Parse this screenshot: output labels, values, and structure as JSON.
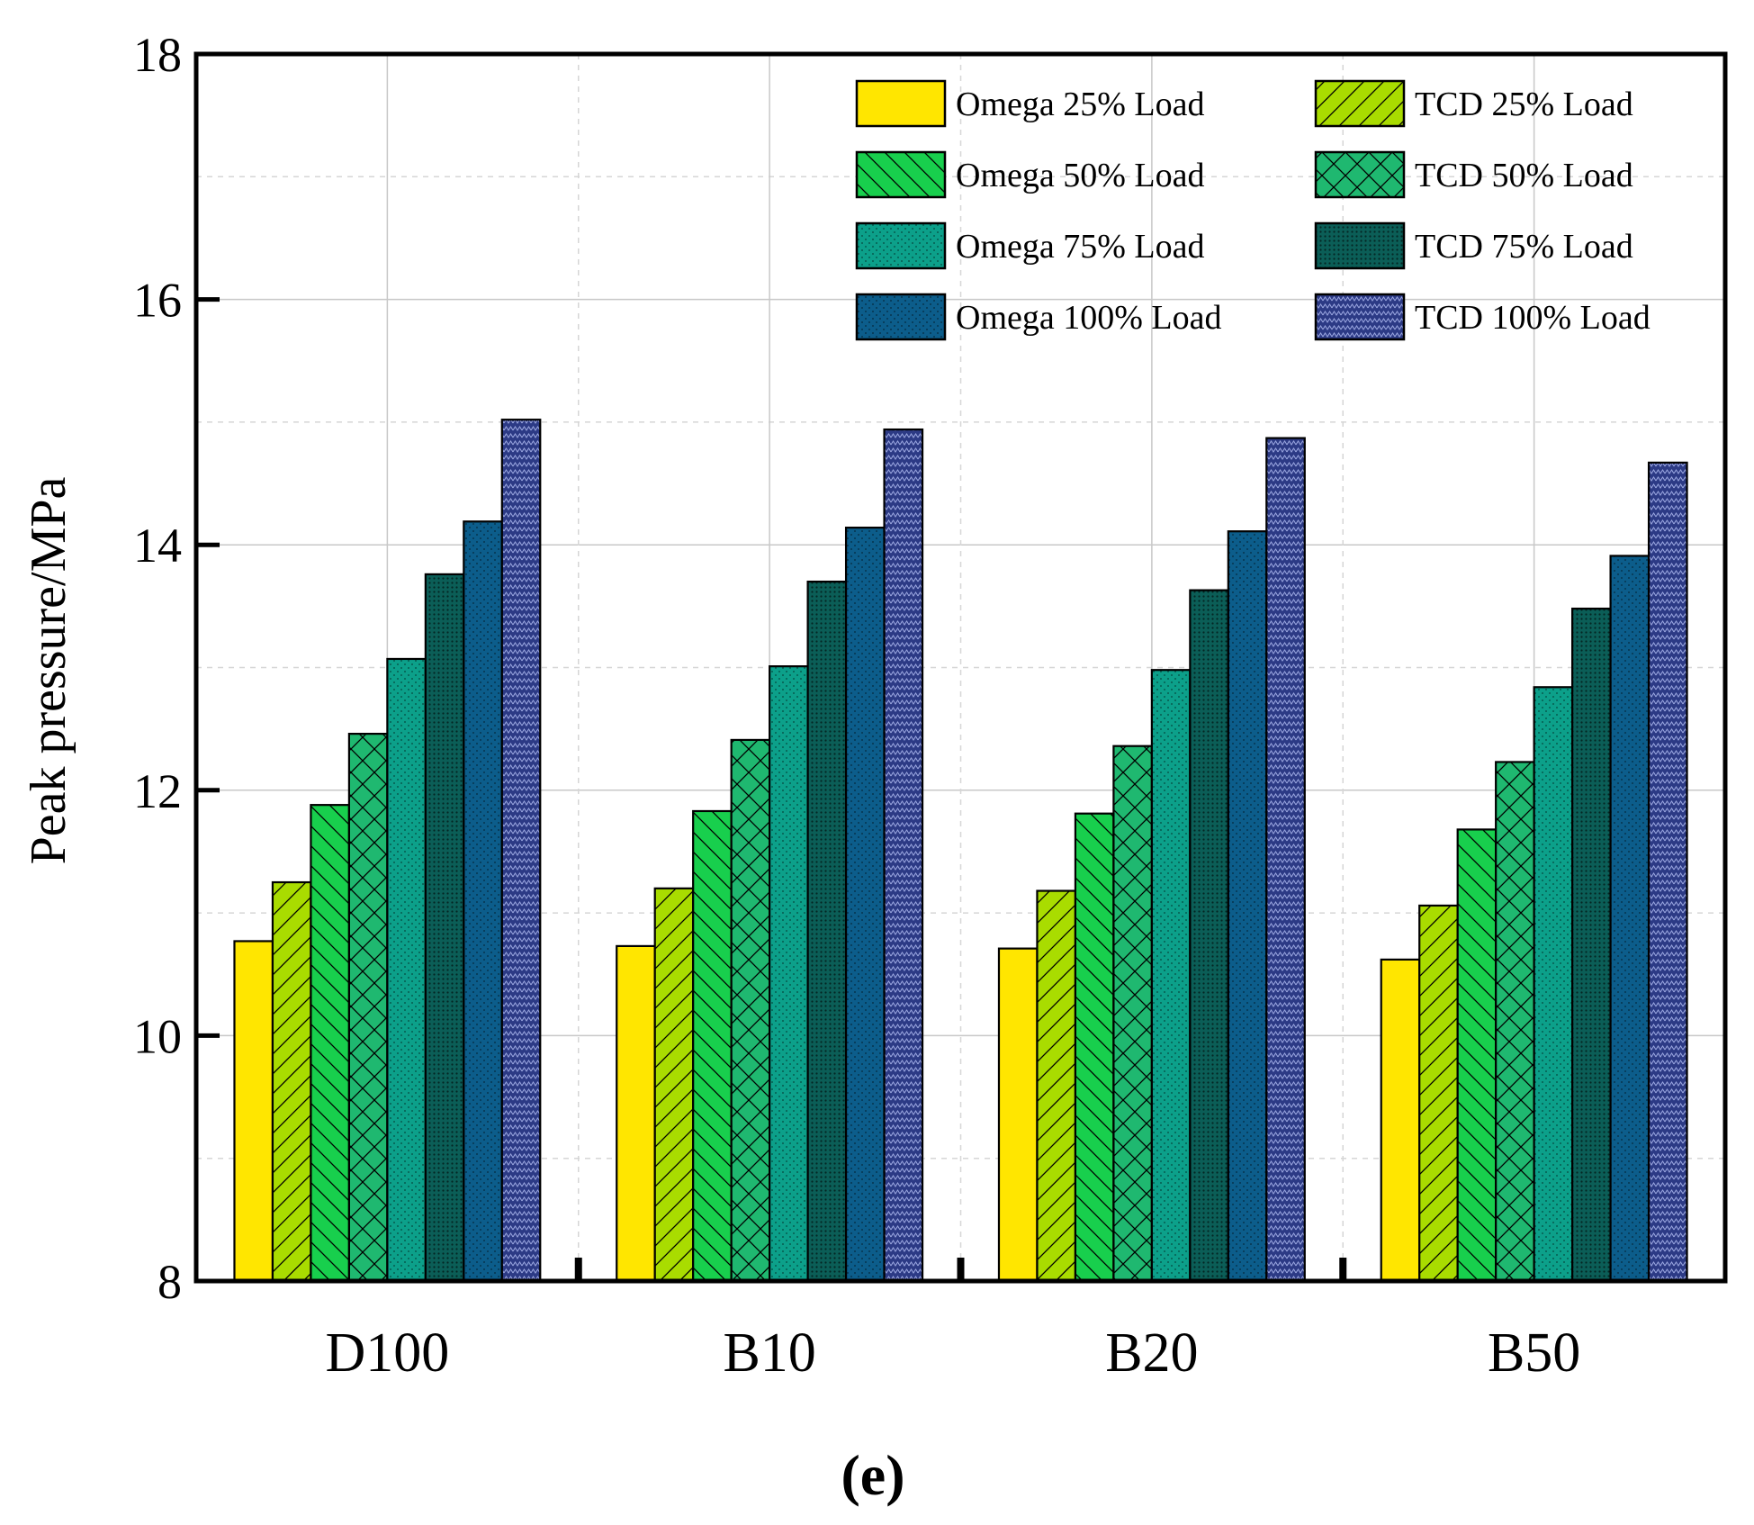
{
  "chart_data": {
    "type": "bar",
    "title": "",
    "xlabel": "",
    "ylabel": "Peak pressure/MPa",
    "ylim": [
      8,
      18
    ],
    "yticks": [
      "8",
      "10",
      "12",
      "14",
      "16",
      "18"
    ],
    "grid": true,
    "legend_position": "top-right",
    "categories": [
      "D100",
      "B10",
      "B20",
      "B50"
    ],
    "series": [
      {
        "name": "Omega 25% Load",
        "color": "#ffe600",
        "pattern": "none",
        "values": [
          10.77,
          10.73,
          10.71,
          10.62
        ]
      },
      {
        "name": "TCD 25% Load",
        "color": "#a9dc00",
        "pattern": "diag-up",
        "values": [
          11.25,
          11.2,
          11.18,
          11.06
        ]
      },
      {
        "name": "Omega 50% Load",
        "color": "#18cf4d",
        "pattern": "diag-down",
        "values": [
          11.88,
          11.83,
          11.81,
          11.68
        ]
      },
      {
        "name": "TCD 50% Load",
        "color": "#1fb870",
        "pattern": "cross",
        "values": [
          12.46,
          12.41,
          12.36,
          12.23
        ]
      },
      {
        "name": "Omega 75% Load",
        "color": "#0ca08a",
        "pattern": "dots",
        "values": [
          13.07,
          13.01,
          12.98,
          12.84
        ]
      },
      {
        "name": "TCD 75% Load",
        "color": "#0b5e57",
        "pattern": "dense-dots",
        "values": [
          13.76,
          13.7,
          13.63,
          13.48
        ]
      },
      {
        "name": "Omega 100% Load",
        "color": "#0c5d8b",
        "pattern": "dots",
        "values": [
          14.19,
          14.14,
          14.11,
          13.91
        ]
      },
      {
        "name": "TCD 100% Load",
        "color": "#2c3a85",
        "pattern": "zigzag",
        "values": [
          15.02,
          14.94,
          14.87,
          14.67
        ]
      }
    ]
  },
  "panel_label": "(e)"
}
